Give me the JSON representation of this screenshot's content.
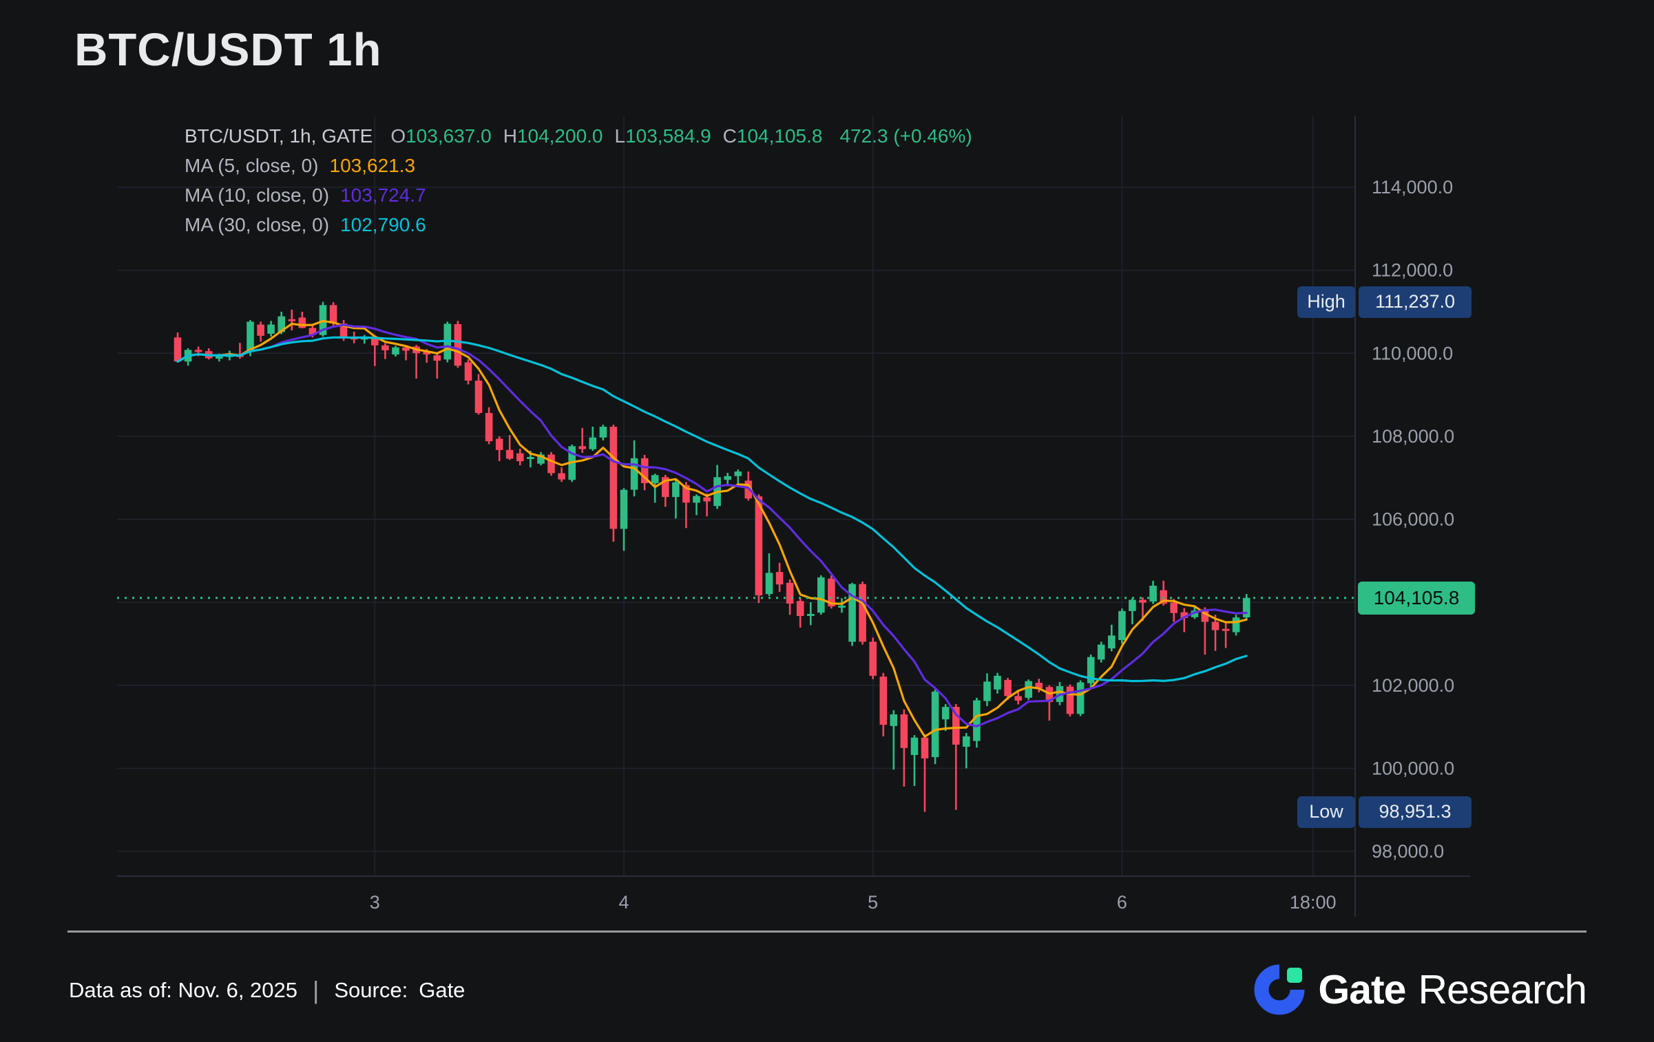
{
  "title": "BTC/USDT 1h",
  "legend": {
    "symbol": "BTC/USDT, 1h, GATE",
    "o_label": "O",
    "o": "103,637.0",
    "h_label": "H",
    "h": "104,200.0",
    "l_label": "L",
    "l": "103,584.9",
    "c_label": "C",
    "c": "104,105.8",
    "change": "472.3 (+0.46%)"
  },
  "footer": {
    "data_as_of": "Data as of: Nov. 6, 2025",
    "separator": "|",
    "source_label": "Source:",
    "source_value": "Gate"
  },
  "logo": {
    "brand": "Gate",
    "product": "Research",
    "blue": "#2e5bf0",
    "green": "#2ce5a2"
  },
  "colors": {
    "background": "#131416",
    "grid": "#20242e",
    "axis": "#2a2e39",
    "tick_text": "#9aa0aa",
    "up": "#2ebd85",
    "down": "#f6465d",
    "badge_blue": "#1c3e74",
    "divider": "#9b9b9e"
  },
  "chart_data": {
    "type": "candlestick",
    "symbol": "BTC/USDT",
    "interval": "1h",
    "exchange": "GATE",
    "last_price": 104105.8,
    "high": 111237.0,
    "low": 98951.3,
    "ma": [
      {
        "period": 5,
        "label": "MA (5, close, 0)",
        "value": "103,621.3",
        "color": "#f7a600"
      },
      {
        "period": 10,
        "label": "MA (10, close, 0)",
        "value": "103,724.7",
        "color": "#5f2de0"
      },
      {
        "period": 30,
        "label": "MA (30, close, 0)",
        "value": "102,790.6",
        "color": "#00c2da"
      }
    ],
    "badges": {
      "high": {
        "label": "High",
        "value": "111,237.0",
        "price": 111237.0
      },
      "low": {
        "label": "Low",
        "value": "98,951.3",
        "price": 98951.3
      },
      "last": {
        "value": "104,105.8",
        "price": 104105.8
      }
    },
    "y_axis": {
      "ticks": [
        {
          "label": "114,000.0",
          "price": 114000
        },
        {
          "label": "112,000.0",
          "price": 112000
        },
        {
          "label": "110,000.0",
          "price": 110000
        },
        {
          "label": "108,000.0",
          "price": 108000
        },
        {
          "label": "106,000.0",
          "price": 106000
        },
        {
          "label": "104,000.0",
          "price": 104000
        },
        {
          "label": "102,000.0",
          "price": 102000
        },
        {
          "label": "100,000.0",
          "price": 100000
        },
        {
          "label": "98,000.0",
          "price": 98000
        }
      ]
    },
    "x_axis": {
      "ticks": [
        {
          "label": "3",
          "index": 19
        },
        {
          "label": "4",
          "index": 43
        },
        {
          "label": "5",
          "index": 67
        },
        {
          "label": "6",
          "index": 91
        },
        {
          "label": "18:00",
          "index": 109.4
        }
      ]
    },
    "candles": [
      [
        110380,
        110500,
        109780,
        109800
      ],
      [
        109800,
        110120,
        109700,
        110080
      ],
      [
        110080,
        110160,
        109930,
        110050
      ],
      [
        110050,
        110120,
        109850,
        109880
      ],
      [
        109880,
        109990,
        109800,
        109920
      ],
      [
        109920,
        110060,
        109830,
        109960
      ],
      [
        109960,
        110250,
        109870,
        109930
      ],
      [
        110030,
        110800,
        109930,
        110760
      ],
      [
        110690,
        110760,
        110280,
        110420
      ],
      [
        110470,
        110780,
        110400,
        110690
      ],
      [
        110510,
        111000,
        110460,
        110890
      ],
      [
        110820,
        111050,
        110550,
        110780
      ],
      [
        110860,
        111000,
        110600,
        110610
      ],
      [
        110610,
        110700,
        110380,
        110440
      ],
      [
        110440,
        111237,
        110400,
        111160
      ],
      [
        111160,
        111230,
        110650,
        110715
      ],
      [
        110715,
        110800,
        110300,
        110385
      ],
      [
        110385,
        110520,
        110240,
        110330
      ],
      [
        110330,
        110440,
        110230,
        110400
      ],
      [
        110400,
        110430,
        109690,
        110190
      ],
      [
        110190,
        110240,
        109860,
        110070
      ],
      [
        109970,
        110180,
        109920,
        110140
      ],
      [
        110140,
        110180,
        109830,
        110060
      ],
      [
        110160,
        110200,
        109390,
        110000
      ],
      [
        110030,
        110100,
        109770,
        109970
      ],
      [
        109950,
        110000,
        109390,
        109820
      ],
      [
        109850,
        110760,
        109780,
        110710
      ],
      [
        110700,
        110780,
        109650,
        109700
      ],
      [
        109780,
        109850,
        109250,
        109340
      ],
      [
        109340,
        109500,
        108520,
        108560
      ],
      [
        108560,
        108700,
        107810,
        107880
      ],
      [
        107940,
        108000,
        107400,
        107670
      ],
      [
        107670,
        108030,
        107430,
        107460
      ],
      [
        107590,
        107700,
        107300,
        107400
      ],
      [
        107450,
        107650,
        107250,
        107500
      ],
      [
        107340,
        107620,
        107300,
        107560
      ],
      [
        107560,
        107620,
        107050,
        107110
      ],
      [
        107110,
        107250,
        106900,
        106960
      ],
      [
        106950,
        107800,
        106900,
        107760
      ],
      [
        107760,
        108200,
        107600,
        107690
      ],
      [
        107690,
        108230,
        107650,
        107970
      ],
      [
        107970,
        108280,
        107900,
        108230
      ],
      [
        108230,
        108280,
        105460,
        105770
      ],
      [
        105770,
        106750,
        105240,
        106710
      ],
      [
        106710,
        107900,
        106550,
        107470
      ],
      [
        107470,
        107550,
        106700,
        106870
      ],
      [
        106870,
        107100,
        106400,
        107065
      ],
      [
        107015,
        107070,
        106300,
        106535
      ],
      [
        106535,
        106950,
        106020,
        106890
      ],
      [
        106820,
        106900,
        105790,
        106400
      ],
      [
        106400,
        106600,
        106100,
        106560
      ],
      [
        106530,
        106620,
        106070,
        106430
      ],
      [
        106320,
        107310,
        106250,
        107015
      ],
      [
        106950,
        107120,
        106800,
        107040
      ],
      [
        107040,
        107200,
        106850,
        107150
      ],
      [
        106930,
        107150,
        106450,
        106500
      ],
      [
        106550,
        106600,
        103980,
        104165
      ],
      [
        104200,
        105180,
        104150,
        104710
      ],
      [
        104730,
        104950,
        104250,
        104430
      ],
      [
        104470,
        104550,
        103700,
        103970
      ],
      [
        104030,
        104100,
        103390,
        103670
      ],
      [
        103670,
        104000,
        103450,
        103720
      ],
      [
        103750,
        104650,
        103700,
        104600
      ],
      [
        104570,
        104650,
        103850,
        103900
      ],
      [
        103900,
        104100,
        103750,
        103920
      ],
      [
        103050,
        104470,
        102950,
        104440
      ],
      [
        104440,
        104500,
        102980,
        103050
      ],
      [
        103050,
        103150,
        102150,
        102230
      ],
      [
        102210,
        102300,
        100770,
        101050
      ],
      [
        101020,
        101400,
        99970,
        101300
      ],
      [
        101300,
        101420,
        99560,
        100490
      ],
      [
        100320,
        100800,
        99575,
        100740
      ],
      [
        100740,
        100820,
        98951.3,
        100240
      ],
      [
        100270,
        101900,
        100100,
        101850
      ],
      [
        101180,
        101550,
        100900,
        101480
      ],
      [
        101480,
        101550,
        99000,
        100570
      ],
      [
        100520,
        100850,
        100000,
        100770
      ],
      [
        100660,
        101700,
        100500,
        101640
      ],
      [
        101620,
        102290,
        101500,
        102090
      ],
      [
        101900,
        102300,
        101800,
        102230
      ],
      [
        102130,
        102180,
        101650,
        101740
      ],
      [
        101740,
        101890,
        101540,
        101630
      ],
      [
        101700,
        102140,
        101650,
        102100
      ],
      [
        102060,
        102160,
        101830,
        101930
      ],
      [
        101960,
        102000,
        101150,
        101600
      ],
      [
        101600,
        102080,
        101520,
        101980
      ],
      [
        101970,
        102020,
        101250,
        101310
      ],
      [
        101310,
        102120,
        101260,
        102070
      ],
      [
        102050,
        102740,
        101950,
        102680
      ],
      [
        102620,
        103050,
        102550,
        102980
      ],
      [
        102890,
        103460,
        102820,
        103200
      ],
      [
        103090,
        103850,
        103000,
        103790
      ],
      [
        103790,
        104100,
        103470,
        104060
      ],
      [
        104060,
        104120,
        103550,
        103990
      ],
      [
        104020,
        104520,
        103960,
        104400
      ],
      [
        104290,
        104520,
        103920,
        103965
      ],
      [
        103990,
        104080,
        103530,
        103740
      ],
      [
        103760,
        103860,
        103280,
        103620
      ],
      [
        103640,
        103900,
        103600,
        103800
      ],
      [
        103830,
        103880,
        102740,
        103530
      ],
      [
        103530,
        103700,
        102830,
        103330
      ],
      [
        103360,
        103550,
        102900,
        103320
      ],
      [
        103280,
        103700,
        103200,
        103633.5
      ],
      [
        103637.0,
        104200.0,
        103584.9,
        104105.8
      ]
    ]
  }
}
